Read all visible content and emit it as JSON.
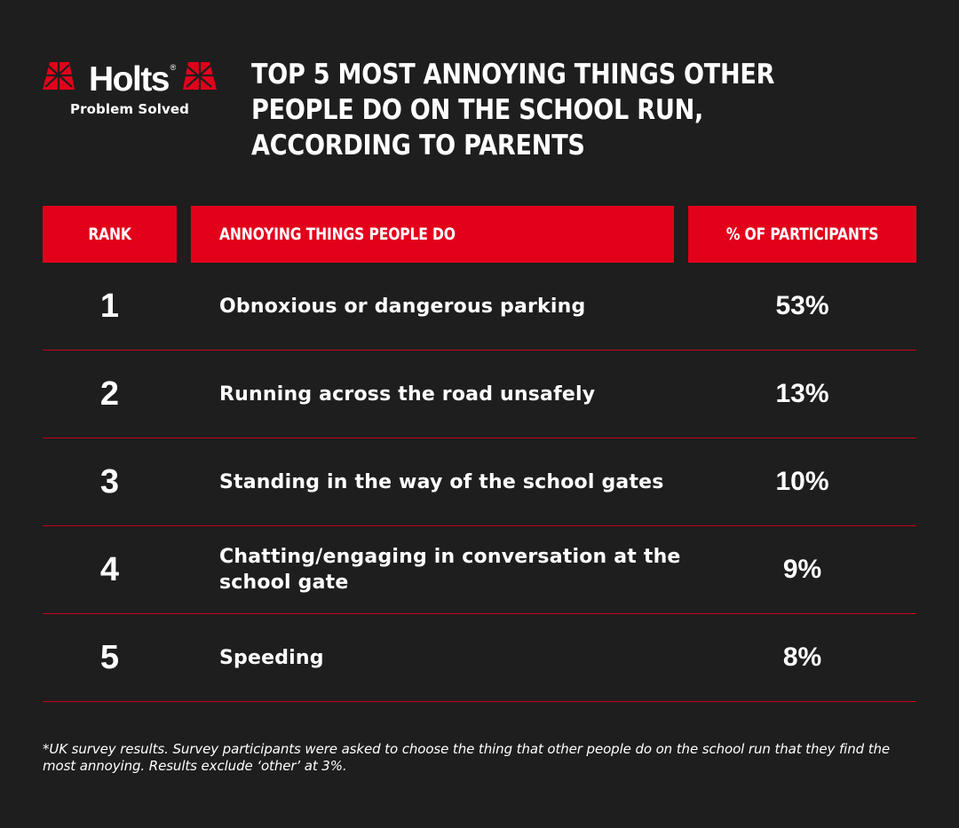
{
  "brand": {
    "name": "Holts",
    "registered_mark": "®",
    "tagline": "Problem Solved",
    "accent_color": "#e3001b",
    "background_color": "#1e1e1e"
  },
  "headline": "Top 5 most annoying things other people do on the school run, according to parents",
  "chart_data": {
    "type": "table",
    "title": "Top 5 most annoying things other people do on the school run, according to parents",
    "columns": [
      "Rank",
      "Annoying things people do",
      "% of participants"
    ],
    "rows": [
      {
        "rank": "1",
        "thing": "Obnoxious or dangerous parking",
        "percent": "53%",
        "value": 53
      },
      {
        "rank": "2",
        "thing": "Running across the road unsafely",
        "percent": "13%",
        "value": 13
      },
      {
        "rank": "3",
        "thing": "Standing in the way of the school gates",
        "percent": "10%",
        "value": 10
      },
      {
        "rank": "4",
        "thing": "Chatting/engaging in conversation at the school gate",
        "percent": "9%",
        "value": 9
      },
      {
        "rank": "5",
        "thing": "Speeding",
        "percent": "8%",
        "value": 8
      }
    ]
  },
  "footnote": "*UK survey results. Survey participants were asked to choose the thing that other people do on the school run that they find the most annoying. Results exclude ‘other’ at 3%."
}
